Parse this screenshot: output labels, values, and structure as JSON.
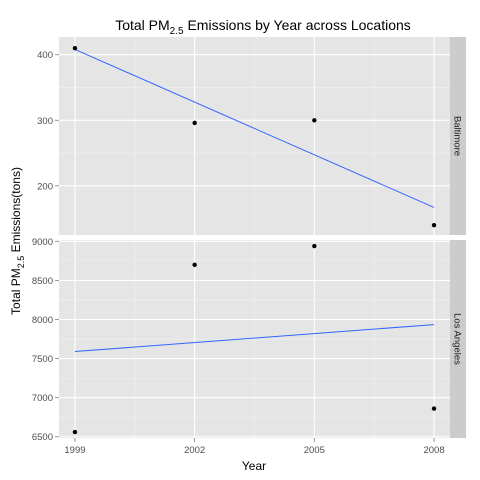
{
  "chart_data": {
    "type": "scatter",
    "title": {
      "main": "Total PM",
      "sub": "2.5",
      "rest": " Emissions by Year across Locations"
    },
    "xlabel": "Year",
    "ylabel": {
      "main": "Total PM",
      "sub": "2.5",
      "rest": " Emissions(tons)"
    },
    "x_ticks": [
      1999,
      2002,
      2005,
      2008
    ],
    "xlim": [
      1998.6,
      2008.4
    ],
    "grid": true,
    "facet_layout": "vertical, free y scales",
    "panels": [
      {
        "strip_label": "Baltimore",
        "ylim": [
          125,
          427
        ],
        "y_ticks": [
          200,
          300,
          400
        ],
        "points": [
          {
            "x": 1999,
            "y": 410
          },
          {
            "x": 2002,
            "y": 296
          },
          {
            "x": 2005,
            "y": 300
          },
          {
            "x": 2008,
            "y": 140
          }
        ],
        "trend_line": {
          "x": [
            1999,
            2008
          ],
          "y": [
            408,
            167
          ],
          "color": "#3366ff"
        }
      },
      {
        "strip_label": "Los Angeles",
        "ylim": [
          6484,
          9017
        ],
        "y_ticks": [
          6500,
          7000,
          7500,
          8000,
          8500,
          9000
        ],
        "points": [
          {
            "x": 1999,
            "y": 6560
          },
          {
            "x": 2002,
            "y": 8700
          },
          {
            "x": 2005,
            "y": 8940
          },
          {
            "x": 2008,
            "y": 6860
          }
        ],
        "trend_line": {
          "x": [
            1999,
            2008
          ],
          "y": [
            7590,
            7935
          ],
          "color": "#3366ff"
        }
      }
    ]
  }
}
